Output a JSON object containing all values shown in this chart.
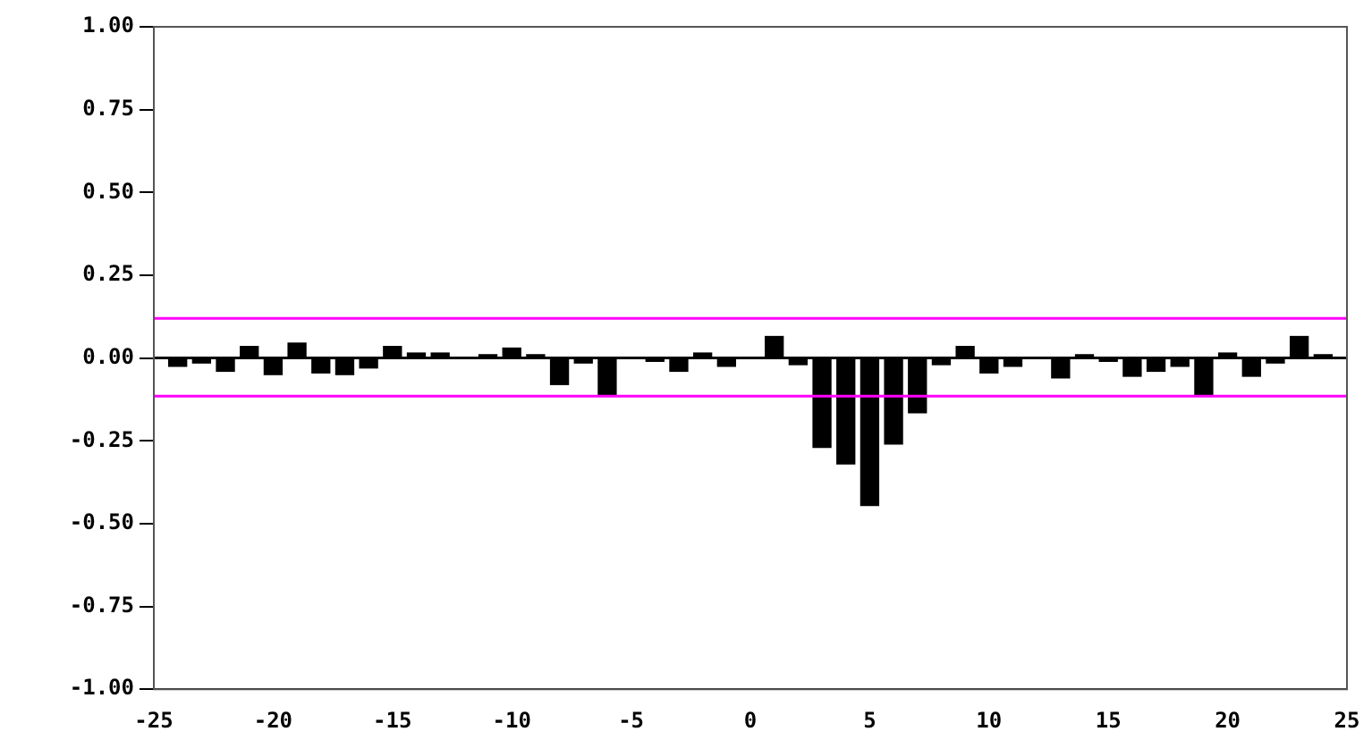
{
  "chart_data": {
    "type": "bar",
    "x": [
      -24,
      -23,
      -22,
      -21,
      -20,
      -19,
      -18,
      -17,
      -16,
      -15,
      -14,
      -13,
      -12,
      -11,
      -10,
      -9,
      -8,
      -7,
      -6,
      -5,
      -4,
      -3,
      -2,
      -1,
      0,
      1,
      2,
      3,
      4,
      5,
      6,
      7,
      8,
      9,
      10,
      11,
      12,
      13,
      14,
      15,
      16,
      17,
      18,
      19,
      20,
      21,
      22,
      23,
      24
    ],
    "values": [
      -0.025,
      -0.015,
      -0.04,
      0.035,
      -0.05,
      0.045,
      -0.045,
      -0.05,
      -0.03,
      0.035,
      0.015,
      0.015,
      0,
      0.01,
      0.03,
      0.01,
      -0.08,
      -0.015,
      -0.115,
      0,
      -0.01,
      -0.04,
      0.015,
      -0.025,
      0,
      0.065,
      -0.02,
      -0.27,
      -0.32,
      -0.445,
      -0.26,
      -0.165,
      -0.02,
      0.035,
      -0.045,
      -0.025,
      0,
      -0.06,
      0.01,
      -0.01,
      -0.055,
      -0.04,
      -0.025,
      -0.11,
      0.015,
      -0.055,
      -0.015,
      0.065,
      0.01
    ],
    "color": "#000000",
    "xlim": [
      -25,
      25
    ],
    "xticks": [
      -25,
      -20,
      -15,
      -10,
      -5,
      0,
      5,
      10,
      15,
      20,
      25
    ],
    "ylim": [
      -1,
      1
    ],
    "yticks": [
      {
        "value": -1,
        "label": "-1.00"
      },
      {
        "value": -0.75,
        "label": "-0.75"
      },
      {
        "value": -0.5,
        "label": "-0.50"
      },
      {
        "value": -0.25,
        "label": "-0.25"
      },
      {
        "value": 0,
        "label": "0.00"
      },
      {
        "value": 0.25,
        "label": "0.25"
      },
      {
        "value": 0.5,
        "label": "0.50"
      },
      {
        "value": 0.75,
        "label": "0.75"
      },
      {
        "value": 1,
        "label": "1.00"
      }
    ],
    "ref_lines": [
      {
        "axis": "y",
        "value": 0.12,
        "color": "#ff00ff"
      },
      {
        "axis": "y",
        "value": -0.115,
        "color": "#ff00ff"
      },
      {
        "axis": "y",
        "value": 0,
        "color": "#000000"
      }
    ],
    "grid": false,
    "legend": false
  }
}
